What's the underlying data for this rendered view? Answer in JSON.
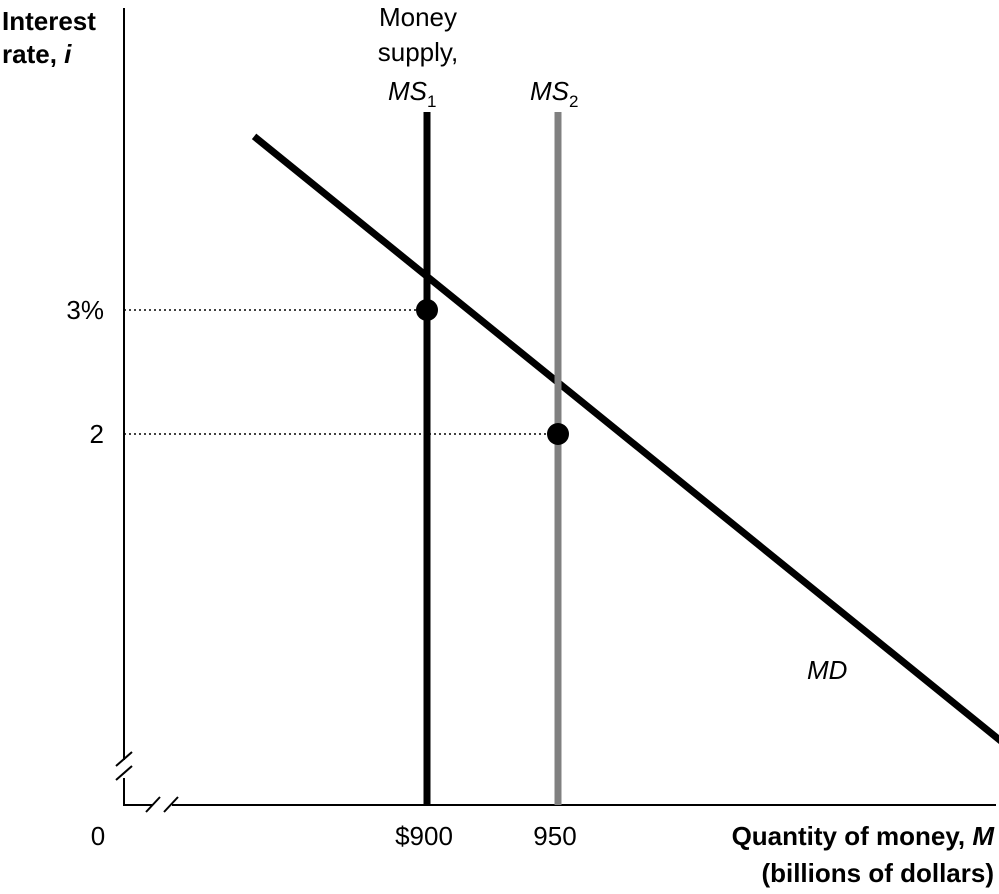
{
  "chart_data": {
    "type": "line",
    "ylabel": {
      "line1": "Interest",
      "line2": "rate, ",
      "var": "i"
    },
    "xlabel": {
      "line1": "Quantity of money, ",
      "var": "M",
      "line2": "(billions of dollars)"
    },
    "origin_label": "0",
    "y_ticks": [
      {
        "value": 3,
        "label": "3%"
      },
      {
        "value": 2,
        "label": "2"
      }
    ],
    "x_ticks": [
      {
        "value": 900,
        "label": "$900"
      },
      {
        "value": 950,
        "label": "950"
      }
    ],
    "axis_breaks": {
      "x": true,
      "y": true
    },
    "series": [
      {
        "name": "MD",
        "kind": "money-demand",
        "color": "#000000",
        "points": [
          {
            "x": 834,
            "y": 4.4
          },
          {
            "x": 1138,
            "y": -0.8
          }
        ]
      },
      {
        "name": "MS1",
        "label_lines": [
          "Money",
          "supply,"
        ],
        "label_main": "MS",
        "label_sub": "1",
        "kind": "money-supply",
        "color": "#000000",
        "x": 900
      },
      {
        "name": "MS2",
        "label_main": "MS",
        "label_sub": "2",
        "kind": "money-supply",
        "color": "#808080",
        "x": 950
      }
    ],
    "equilibria": [
      {
        "x": 900,
        "y": 3
      },
      {
        "x": 950,
        "y": 2
      }
    ],
    "grid": false
  }
}
